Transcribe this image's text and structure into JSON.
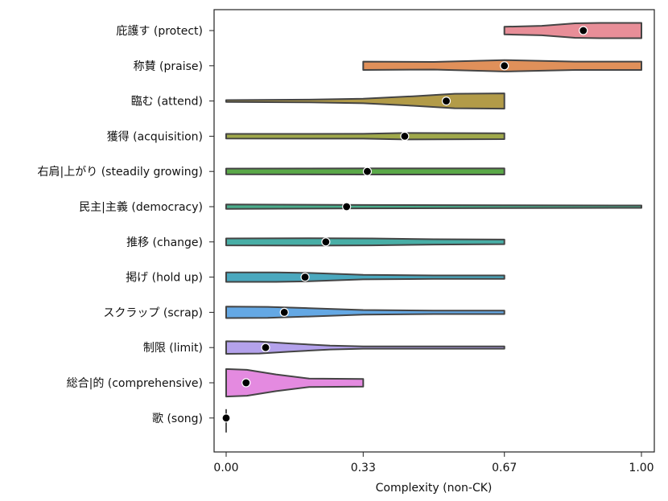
{
  "chart_data": {
    "type": "violin",
    "orientation": "horizontal",
    "xlabel": "Complexity (non-CK)",
    "xlim": [
      -0.01,
      1.03
    ],
    "x_ticks": [
      0.0,
      0.33,
      0.67,
      1.0
    ],
    "x_tick_labels": [
      "0.00",
      "0.33",
      "0.67",
      "1.00"
    ],
    "categories": [
      {
        "label": "庇護す (protect)",
        "color": "#e88e98",
        "mean": 0.86,
        "min": 0.67,
        "max": 1.0,
        "profile": [
          [
            0.67,
            0.5
          ],
          [
            0.76,
            0.62
          ],
          [
            0.84,
            0.95
          ],
          [
            0.9,
            1.0
          ],
          [
            1.0,
            1.0
          ]
        ]
      },
      {
        "label": "称賛 (praise)",
        "color": "#e0905a",
        "mean": 0.67,
        "min": 0.33,
        "max": 1.0,
        "profile": [
          [
            0.33,
            0.55
          ],
          [
            0.5,
            0.5
          ],
          [
            0.67,
            0.75
          ],
          [
            0.84,
            0.55
          ],
          [
            1.0,
            0.55
          ]
        ]
      },
      {
        "label": "臨む (attend)",
        "color": "#b29b48",
        "mean": 0.53,
        "min": 0.0,
        "max": 0.67,
        "profile": [
          [
            0.0,
            0.12
          ],
          [
            0.2,
            0.18
          ],
          [
            0.33,
            0.3
          ],
          [
            0.45,
            0.62
          ],
          [
            0.55,
            0.95
          ],
          [
            0.67,
            1.0
          ]
        ]
      },
      {
        "label": "獲得 (acquisition)",
        "color": "#9fa84a",
        "mean": 0.43,
        "min": 0.0,
        "max": 0.67,
        "profile": [
          [
            0.0,
            0.3
          ],
          [
            0.33,
            0.32
          ],
          [
            0.43,
            0.42
          ],
          [
            0.67,
            0.38
          ]
        ]
      },
      {
        "label": "右肩|上がり (steadily growing)",
        "color": "#5aa848",
        "mean": 0.34,
        "min": 0.0,
        "max": 0.67,
        "profile": [
          [
            0.0,
            0.38
          ],
          [
            0.33,
            0.4
          ],
          [
            0.67,
            0.4
          ]
        ]
      },
      {
        "label": "民主|主義 (democracy)",
        "color": "#4aae8c",
        "mean": 0.29,
        "min": 0.0,
        "max": 1.0,
        "profile": [
          [
            0.0,
            0.28
          ],
          [
            0.33,
            0.22
          ],
          [
            0.67,
            0.18
          ],
          [
            1.0,
            0.16
          ]
        ]
      },
      {
        "label": "推移 (change)",
        "color": "#48aea6",
        "mean": 0.24,
        "min": 0.0,
        "max": 0.67,
        "profile": [
          [
            0.0,
            0.45
          ],
          [
            0.2,
            0.48
          ],
          [
            0.35,
            0.45
          ],
          [
            0.5,
            0.35
          ],
          [
            0.67,
            0.3
          ]
        ]
      },
      {
        "label": "掲げ (hold up)",
        "color": "#4aa8be",
        "mean": 0.19,
        "min": 0.0,
        "max": 0.67,
        "profile": [
          [
            0.0,
            0.62
          ],
          [
            0.12,
            0.62
          ],
          [
            0.2,
            0.55
          ],
          [
            0.33,
            0.3
          ],
          [
            0.5,
            0.22
          ],
          [
            0.67,
            0.22
          ]
        ]
      },
      {
        "label": "スクラップ (scrap)",
        "color": "#64a8e4",
        "mean": 0.14,
        "min": 0.0,
        "max": 0.67,
        "profile": [
          [
            0.0,
            0.75
          ],
          [
            0.1,
            0.72
          ],
          [
            0.2,
            0.55
          ],
          [
            0.33,
            0.3
          ],
          [
            0.5,
            0.22
          ],
          [
            0.67,
            0.22
          ]
        ]
      },
      {
        "label": "制限 (limit)",
        "color": "#b4a2ec",
        "mean": 0.095,
        "min": 0.0,
        "max": 0.67,
        "profile": [
          [
            0.0,
            0.82
          ],
          [
            0.08,
            0.78
          ],
          [
            0.15,
            0.55
          ],
          [
            0.25,
            0.25
          ],
          [
            0.33,
            0.15
          ],
          [
            0.67,
            0.15
          ]
        ]
      },
      {
        "label": "総合|的 (comprehensive)",
        "color": "#e48ae0",
        "mean": 0.048,
        "min": 0.0,
        "max": 0.33,
        "profile": [
          [
            0.0,
            1.8
          ],
          [
            0.05,
            1.7
          ],
          [
            0.12,
            1.1
          ],
          [
            0.2,
            0.55
          ],
          [
            0.33,
            0.5
          ]
        ]
      },
      {
        "label": "歌 (song)",
        "color": "#555555",
        "mean": 0.0,
        "min": 0.0,
        "max": 0.0,
        "profile": []
      }
    ]
  }
}
